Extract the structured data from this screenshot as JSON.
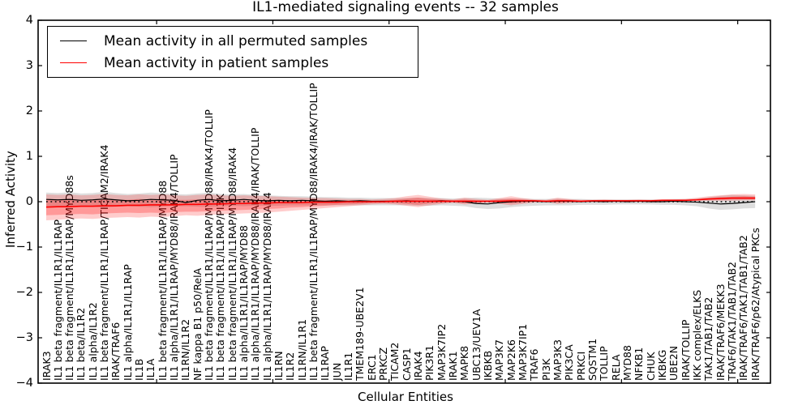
{
  "title": "IL1-mediated signaling events -- 32 samples",
  "legend": {
    "entries": [
      {
        "label": "Mean activity in all permuted samples",
        "color": "#000000"
      },
      {
        "label": "Mean activity in patient samples",
        "color": "#ff0000"
      }
    ]
  },
  "chart_data": {
    "type": "line",
    "title": "IL1-mediated signaling events -- 32 samples",
    "xlabel": "Cellular Entities",
    "ylabel": "Inferred Activity",
    "ylim": [
      -4,
      4
    ],
    "yticks": [
      4,
      3,
      2,
      1,
      0,
      -1,
      -2,
      -3,
      -4
    ],
    "ytick_labels": [
      "4",
      "3",
      "2",
      "1",
      "0",
      "−1",
      "−2",
      "−3",
      "−4"
    ],
    "xtick_indices": [
      10,
      20,
      30,
      40,
      50,
      60
    ],
    "grid": false,
    "legend_position": "upper left",
    "colors": {
      "permuted": "#000000",
      "patient": "#ff0000",
      "permuted_band": "#000000",
      "patient_band": "#ff0000"
    },
    "categories": [
      "IRAK3",
      "IL1 beta fragment/IL1R1/IL1RAP",
      "IL1 beta fragment/IL1R1/IL1RAP/MYD88s",
      "IL1 beta/IL1R2",
      "IL1 alpha/IL1R2",
      "IL1 beta fragment/IL1R1/IL1RAP/TICAM2/IRAK4",
      "IRAK/TRAF6",
      "IL1 alpha/IL1R1/IL1RAP",
      "IL1B",
      "IL1A",
      "IL1 beta fragment/IL1R1/IL1RAP/MYD88",
      "IL1 alpha/IL1R1/IL1RAP/MYD88/IRAK4/TOLLIP",
      "IL1RN/IL1R2",
      "NF kappa B1 p50/RelA",
      "IL1 beta fragment/IL1R1/IL1RAP/MYD88/IRAK4/TOLLIP",
      "IL1 beta fragment/IL1R1/IL1RAP/PI3K",
      "IL1 beta fragment/IL1R1/IL1RAP/MYD88/IRAK4",
      "IL1 alpha/IL1R1/IL1RAP/MYD88",
      "IL1 alpha/IL1R1/IL1RAP/MYD88/IRAK4/IRAK/TOLLIP",
      "IL1 alpha/IL1R1/IL1RAP/MYD88/IRAK4",
      "IL1RN",
      "IL1R2",
      "IL1RN/IL1R1",
      "IL1 beta fragment/IL1R1/IL1RAP/MYD88/IRAK4/IRAK/TOLLIP",
      "IL1RAP",
      "JUN",
      "IL1R1",
      "TMEM189-UBE2V1",
      "ERC1",
      "PRKCZ",
      "TICAM2",
      "CASP1",
      "IRAK4",
      "PIK3R1",
      "MAP3K7IP2",
      "IRAK1",
      "MAPK8",
      "UBC13/UEV1A",
      "IKBKB",
      "MAP3K7",
      "MAP2K6",
      "MAP3K7IP1",
      "TRAF6",
      "PI3K",
      "MAP3K3",
      "PIK3CA",
      "PRKCI",
      "SQSTM1",
      "TOLLIP",
      "RELA",
      "MYD88",
      "NFKB1",
      "CHUK",
      "IKBKG",
      "UBE2N",
      "IRAK/TOLLIP",
      "IKK complex/ELKS",
      "TAK1/TAB1/TAB2",
      "IRAK/TRAF6/MEKK3",
      "TRAF6/TAK1/TAB1/TAB2",
      "IRAK/TRAF6/TAK1/TAB1/TAB2",
      "IRAK/TRAF6/p62/Atypical PKCs"
    ],
    "series": [
      {
        "name": "Mean activity in all permuted samples",
        "color": "#000000",
        "values": [
          0.05,
          0.04,
          0.05,
          0.03,
          0.04,
          0.06,
          0.04,
          0.02,
          0.03,
          0.05,
          0.04,
          0.03,
          -0.02,
          0.03,
          0.05,
          0.02,
          0.03,
          0.05,
          0.03,
          0.02,
          0.03,
          0.02,
          0.03,
          0.02,
          0.01,
          0.02,
          0.01,
          0.02,
          0.01,
          0.01,
          0.01,
          0.02,
          0.01,
          0.01,
          0.02,
          0.01,
          0.0,
          -0.04,
          -0.05,
          -0.02,
          0.0,
          0.01,
          0.01,
          0.0,
          0.01,
          0.01,
          0.0,
          0.01,
          0.0,
          0.01,
          0.0,
          0.01,
          0.0,
          0.0,
          0.01,
          0.0,
          -0.01,
          -0.03,
          -0.05,
          -0.04,
          -0.02,
          0.0
        ]
      },
      {
        "name": "Mean activity in patient samples",
        "color": "#ff0000",
        "values": [
          -0.12,
          -0.11,
          -0.11,
          -0.1,
          -0.1,
          -0.09,
          -0.09,
          -0.08,
          -0.08,
          -0.07,
          -0.07,
          -0.07,
          -0.06,
          -0.06,
          -0.05,
          -0.05,
          -0.04,
          -0.04,
          -0.03,
          -0.03,
          -0.02,
          -0.02,
          -0.02,
          -0.01,
          -0.01,
          -0.01,
          0.0,
          0.0,
          0.0,
          0.0,
          0.01,
          0.01,
          0.01,
          0.01,
          0.01,
          0.01,
          0.01,
          0.01,
          0.01,
          0.01,
          0.02,
          0.02,
          0.02,
          0.01,
          0.02,
          0.02,
          0.01,
          0.02,
          0.02,
          0.02,
          0.02,
          0.02,
          0.02,
          0.03,
          0.03,
          0.03,
          0.04,
          0.06,
          0.07,
          0.08,
          0.08,
          0.08
        ]
      }
    ],
    "bands": [
      {
        "name": "permuted-std-band",
        "color": "#000000",
        "opacity": 0.13,
        "upper": [
          0.2,
          0.19,
          0.21,
          0.18,
          0.19,
          0.22,
          0.19,
          0.17,
          0.18,
          0.2,
          0.19,
          0.17,
          0.16,
          0.18,
          0.2,
          0.17,
          0.16,
          0.17,
          0.15,
          0.14,
          0.13,
          0.12,
          0.12,
          0.11,
          0.1,
          0.1,
          0.09,
          0.09,
          0.08,
          0.08,
          0.08,
          0.08,
          0.09,
          0.08,
          0.08,
          0.07,
          0.08,
          0.09,
          0.08,
          0.07,
          0.07,
          0.07,
          0.06,
          0.06,
          0.07,
          0.06,
          0.06,
          0.05,
          0.05,
          0.05,
          0.05,
          0.05,
          0.05,
          0.05,
          0.06,
          0.06,
          0.07,
          0.1,
          0.13,
          0.15,
          0.14,
          0.13
        ],
        "lower": [
          -0.12,
          -0.11,
          -0.12,
          -0.1,
          -0.11,
          -0.13,
          -0.11,
          -0.1,
          -0.11,
          -0.12,
          -0.11,
          -0.1,
          -0.1,
          -0.11,
          -0.12,
          -0.1,
          -0.09,
          -0.1,
          -0.09,
          -0.09,
          -0.09,
          -0.08,
          -0.08,
          -0.08,
          -0.08,
          -0.08,
          -0.08,
          -0.08,
          -0.08,
          -0.08,
          -0.08,
          -0.08,
          -0.09,
          -0.09,
          -0.08,
          -0.09,
          -0.1,
          -0.14,
          -0.16,
          -0.15,
          -0.12,
          -0.1,
          -0.09,
          -0.08,
          -0.08,
          -0.08,
          -0.07,
          -0.07,
          -0.07,
          -0.06,
          -0.06,
          -0.06,
          -0.06,
          -0.07,
          -0.07,
          -0.08,
          -0.1,
          -0.15,
          -0.18,
          -0.17,
          -0.15,
          -0.14
        ]
      },
      {
        "name": "patient-band-outer",
        "color": "#ff0000",
        "opacity": 0.2,
        "upper": [
          0.16,
          0.15,
          0.16,
          0.14,
          0.15,
          0.17,
          0.15,
          0.14,
          0.16,
          0.15,
          0.16,
          0.14,
          0.13,
          0.15,
          0.16,
          0.14,
          0.13,
          0.14,
          0.13,
          0.12,
          0.11,
          0.1,
          0.09,
          0.08,
          0.08,
          0.07,
          0.06,
          0.06,
          0.05,
          0.06,
          0.08,
          0.12,
          0.15,
          0.11,
          0.07,
          0.05,
          0.09,
          0.06,
          0.04,
          0.08,
          0.12,
          0.08,
          0.05,
          0.04,
          0.09,
          0.06,
          0.04,
          0.04,
          0.05,
          0.04,
          0.04,
          0.05,
          0.04,
          0.05,
          0.05,
          0.06,
          0.09,
          0.12,
          0.14,
          0.16,
          0.17,
          0.16
        ],
        "lower": [
          -0.41,
          -0.4,
          -0.38,
          -0.37,
          -0.38,
          -0.36,
          -0.35,
          -0.34,
          -0.35,
          -0.33,
          -0.34,
          -0.32,
          -0.3,
          -0.31,
          -0.29,
          -0.28,
          -0.27,
          -0.26,
          -0.25,
          -0.24,
          -0.22,
          -0.2,
          -0.18,
          -0.16,
          -0.14,
          -0.12,
          -0.1,
          -0.08,
          -0.06,
          -0.05,
          -0.06,
          -0.09,
          -0.12,
          -0.08,
          -0.05,
          -0.03,
          -0.06,
          -0.04,
          -0.02,
          -0.05,
          -0.08,
          -0.05,
          -0.02,
          -0.01,
          -0.05,
          -0.03,
          -0.01,
          -0.01,
          -0.01,
          0.0,
          0.0,
          0.0,
          0.01,
          0.01,
          0.01,
          0.02,
          0.02,
          0.02,
          0.02,
          0.02,
          0.03,
          0.03
        ]
      },
      {
        "name": "patient-band-inner",
        "color": "#ff0000",
        "opacity": 0.25,
        "upper": [
          0.06,
          0.05,
          0.06,
          0.04,
          0.05,
          0.07,
          0.05,
          0.04,
          0.06,
          0.05,
          0.06,
          0.04,
          0.04,
          0.05,
          0.06,
          0.05,
          0.04,
          0.05,
          0.04,
          0.04,
          0.04,
          0.03,
          0.03,
          0.03,
          0.03,
          0.03,
          0.02,
          0.03,
          0.02,
          0.03,
          0.04,
          0.07,
          0.09,
          0.06,
          0.04,
          0.03,
          0.05,
          0.03,
          0.02,
          0.05,
          0.07,
          0.05,
          0.03,
          0.02,
          0.05,
          0.04,
          0.02,
          0.03,
          0.03,
          0.03,
          0.02,
          0.03,
          0.03,
          0.03,
          0.03,
          0.04,
          0.06,
          0.08,
          0.1,
          0.11,
          0.12,
          0.11
        ],
        "lower": [
          -0.3,
          -0.29,
          -0.28,
          -0.27,
          -0.28,
          -0.26,
          -0.25,
          -0.24,
          -0.25,
          -0.24,
          -0.25,
          -0.23,
          -0.22,
          -0.22,
          -0.21,
          -0.2,
          -0.19,
          -0.18,
          -0.17,
          -0.16,
          -0.15,
          -0.13,
          -0.12,
          -0.1,
          -0.09,
          -0.07,
          -0.06,
          -0.05,
          -0.03,
          -0.02,
          -0.03,
          -0.05,
          -0.07,
          -0.04,
          -0.02,
          -0.01,
          -0.03,
          -0.02,
          0.0,
          -0.02,
          -0.04,
          -0.02,
          0.0,
          0.0,
          -0.02,
          -0.01,
          0.0,
          0.0,
          0.01,
          0.01,
          0.01,
          0.01,
          0.02,
          0.02,
          0.02,
          0.03,
          0.03,
          0.04,
          0.04,
          0.05,
          0.05,
          0.05
        ]
      }
    ],
    "zero_line": {
      "value": 0,
      "style": "dotted",
      "color": "#000000"
    }
  }
}
